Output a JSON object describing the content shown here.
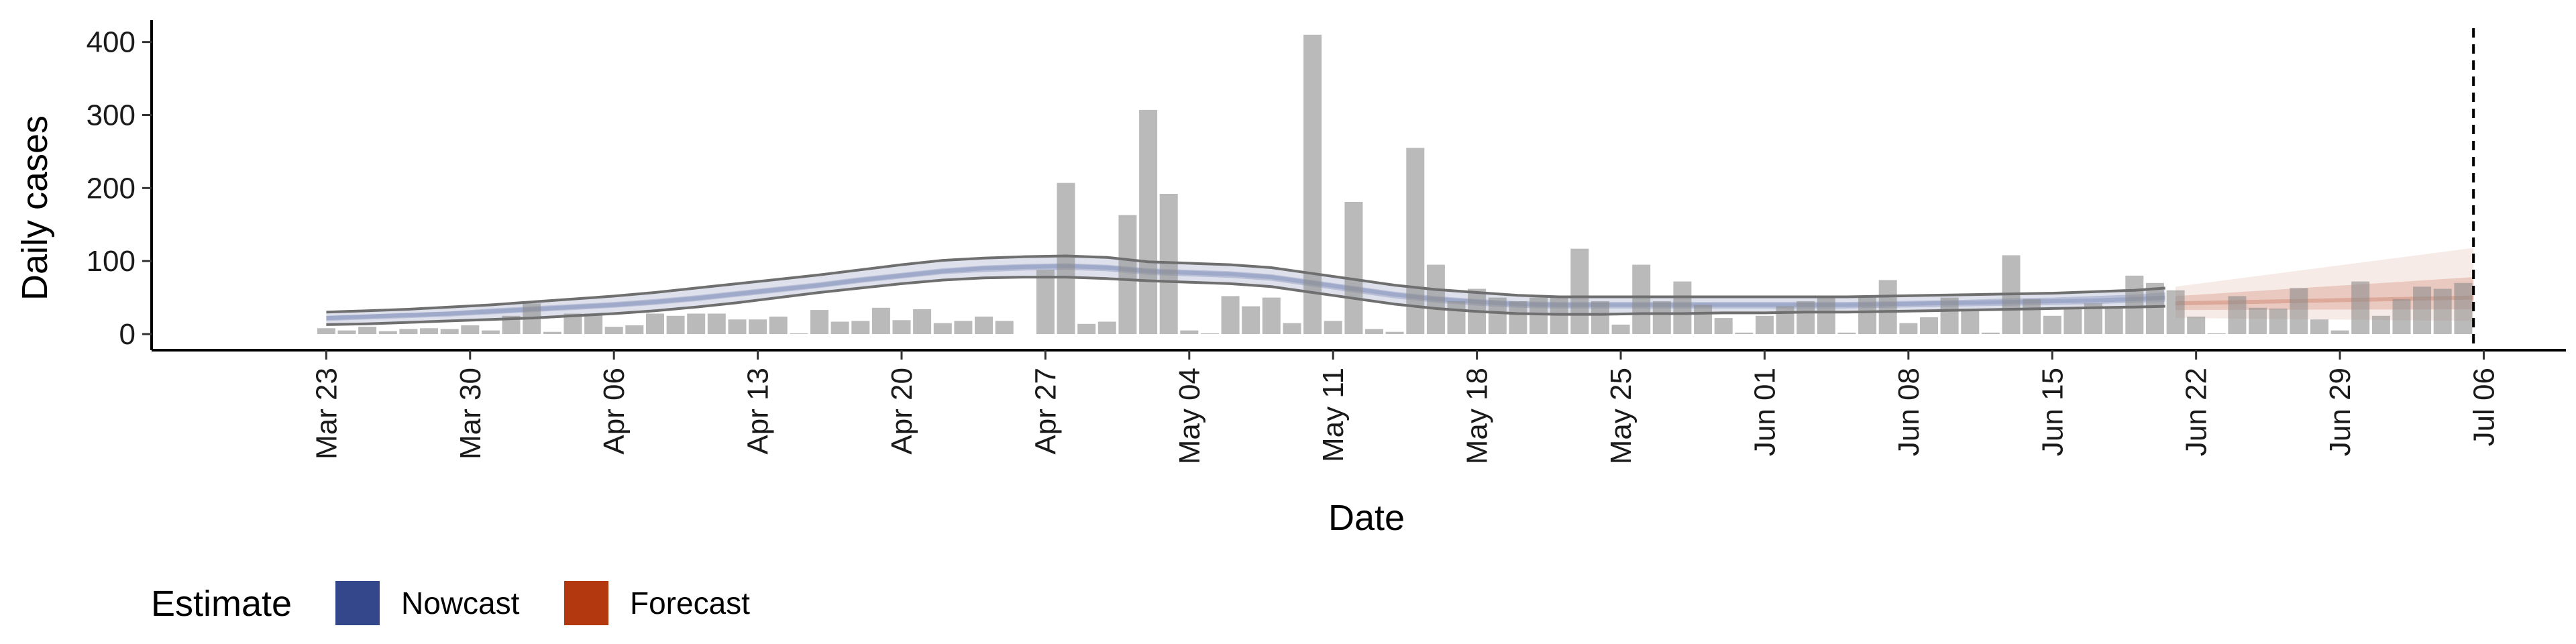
{
  "chart_data": {
    "type": "bar",
    "xlabel": "Date",
    "ylabel": "Daily cases",
    "ylim": [
      0,
      430
    ],
    "y_ticks": [
      0,
      100,
      200,
      300,
      400
    ],
    "x_ticks": [
      {
        "label": "Mar 23",
        "day": 0
      },
      {
        "label": "Mar 30",
        "day": 7
      },
      {
        "label": "Apr 06",
        "day": 14
      },
      {
        "label": "Apr 13",
        "day": 21
      },
      {
        "label": "Apr 20",
        "day": 28
      },
      {
        "label": "Apr 27",
        "day": 35
      },
      {
        "label": "May 04",
        "day": 42
      },
      {
        "label": "May 11",
        "day": 49
      },
      {
        "label": "May 18",
        "day": 56
      },
      {
        "label": "May 25",
        "day": 63
      },
      {
        "label": "Jun 01",
        "day": 70
      },
      {
        "label": "Jun 08",
        "day": 77
      },
      {
        "label": "Jun 15",
        "day": 84
      },
      {
        "label": "Jun 22",
        "day": 91
      },
      {
        "label": "Jun 29",
        "day": 98
      },
      {
        "label": "Jul 06",
        "day": 105
      }
    ],
    "x_start": "Mar 23",
    "xlim_days": [
      -8.5,
      109
    ],
    "grid": false,
    "legend": {
      "title": "Estimate",
      "position": "bottom-left",
      "items": [
        {
          "name": "Nowcast",
          "color": "#34478b"
        },
        {
          "name": "Forecast",
          "color": "#b33810"
        }
      ]
    },
    "reported_cases": [
      8,
      5,
      10,
      4,
      7,
      8,
      7,
      12,
      5,
      25,
      42,
      3,
      28,
      28,
      10,
      12,
      28,
      25,
      28,
      28,
      20,
      20,
      24,
      1,
      33,
      17,
      18,
      36,
      19,
      34,
      15,
      18,
      24,
      18,
      0,
      88,
      207,
      14,
      17,
      163,
      307,
      192,
      5,
      1,
      52,
      38,
      50,
      15,
      410,
      18,
      181,
      7,
      3,
      255,
      95,
      45,
      62,
      50,
      45,
      50,
      50,
      117,
      45,
      13,
      95,
      45,
      72,
      40,
      22,
      2,
      25,
      38,
      45,
      51,
      2,
      50,
      74,
      15,
      23,
      50,
      32,
      2,
      108,
      48,
      25,
      35,
      42,
      38,
      80,
      70,
      60,
      24,
      1,
      52,
      36,
      35,
      63,
      20,
      5,
      72,
      25,
      48,
      65,
      62,
      70
    ],
    "nowcast": {
      "x": [
        0,
        2,
        4,
        6,
        8,
        10,
        12,
        14,
        16,
        18,
        20,
        22,
        24,
        26,
        28,
        30,
        32,
        34,
        36,
        38,
        40,
        42,
        44,
        46,
        48,
        50,
        52,
        54,
        56,
        58,
        60,
        62,
        64,
        66,
        68,
        70,
        72,
        74,
        76,
        78,
        80,
        82,
        84,
        86,
        88,
        89.5
      ],
      "median": [
        22,
        24,
        26,
        28,
        31,
        34,
        37,
        40,
        44,
        49,
        55,
        61,
        67,
        74,
        80,
        86,
        90,
        92,
        93,
        91,
        86,
        84,
        82,
        78,
        70,
        62,
        54,
        48,
        44,
        41,
        40,
        40,
        40,
        40,
        40,
        40,
        40,
        40,
        41,
        42,
        43,
        44,
        45,
        46,
        48,
        50
      ],
      "lower_outer": [
        13,
        14,
        16,
        18,
        20,
        22,
        25,
        28,
        32,
        37,
        43,
        50,
        57,
        63,
        69,
        74,
        77,
        78,
        78,
        76,
        73,
        71,
        69,
        65,
        57,
        49,
        41,
        35,
        31,
        28,
        27,
        27,
        28,
        28,
        29,
        29,
        30,
        30,
        31,
        32,
        33,
        34,
        35,
        36,
        37,
        38
      ],
      "upper_outer": [
        30,
        32,
        34,
        37,
        40,
        44,
        48,
        52,
        57,
        63,
        69,
        75,
        81,
        88,
        95,
        101,
        104,
        106,
        107,
        105,
        99,
        97,
        95,
        91,
        83,
        75,
        67,
        61,
        57,
        53,
        51,
        51,
        51,
        51,
        51,
        51,
        51,
        51,
        52,
        53,
        54,
        55,
        56,
        58,
        60,
        63
      ],
      "lower_inner": [
        18,
        20,
        22,
        24,
        27,
        30,
        33,
        36,
        40,
        45,
        51,
        57,
        63,
        70,
        76,
        82,
        85,
        87,
        88,
        86,
        81,
        79,
        77,
        73,
        65,
        57,
        49,
        43,
        39,
        36,
        35,
        35,
        35,
        35,
        35,
        35,
        35,
        35,
        36,
        37,
        38,
        39,
        40,
        41,
        43,
        44
      ],
      "upper_inner": [
        25,
        27,
        29,
        31,
        35,
        38,
        41,
        44,
        48,
        53,
        59,
        65,
        71,
        78,
        84,
        90,
        94,
        96,
        97,
        95,
        90,
        88,
        86,
        82,
        74,
        66,
        58,
        52,
        48,
        45,
        44,
        44,
        44,
        44,
        44,
        44,
        44,
        44,
        45,
        46,
        47,
        49,
        50,
        52,
        54,
        57
      ]
    },
    "forecast": {
      "x": [
        90,
        104.5
      ],
      "lower_outer": [
        22,
        18
      ],
      "upper_outer": [
        65,
        118
      ],
      "lower_inner": [
        33,
        34
      ],
      "upper_inner": [
        52,
        78
      ],
      "median": [
        42,
        50
      ]
    },
    "cutoff_day": 104.5
  }
}
